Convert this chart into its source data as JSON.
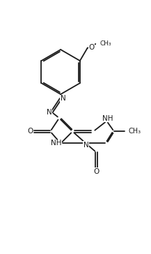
{
  "bg": "#ffffff",
  "lc": "#1a1a1a",
  "lw": 1.3,
  "fs": 7.5,
  "xlim": [
    0,
    10
  ],
  "ylim": [
    0,
    17
  ]
}
